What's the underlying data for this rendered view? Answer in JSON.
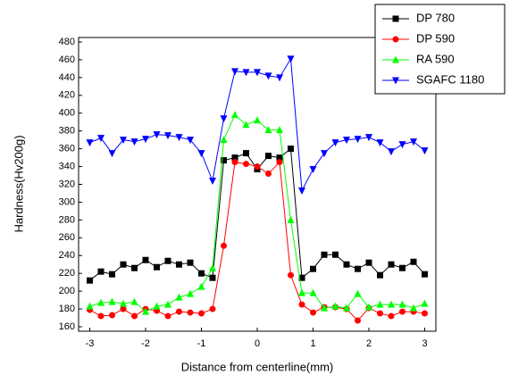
{
  "chart_data": {
    "type": "line",
    "xlabel": "Distance from centerline(mm)",
    "ylabel": "Hardness(Hv200g)",
    "x": [
      -3,
      -2.8,
      -2.6,
      -2.4,
      -2.2,
      -2,
      -1.8,
      -1.6,
      -1.4,
      -1.2,
      -1,
      -0.8,
      -0.6,
      -0.4,
      -0.2,
      0,
      0.2,
      0.4,
      0.6,
      0.8,
      1,
      1.2,
      1.4,
      1.6,
      1.8,
      2,
      2.2,
      2.4,
      2.6,
      2.8,
      3
    ],
    "series": [
      {
        "name": "DP 780",
        "color": "#000000",
        "marker": "square",
        "values": [
          212,
          222,
          219,
          230,
          226,
          235,
          227,
          234,
          230,
          232,
          220,
          215,
          347,
          350,
          355,
          337,
          352,
          350,
          360,
          215,
          225,
          241,
          241,
          230,
          225,
          232,
          218,
          230,
          226,
          233,
          219
        ]
      },
      {
        "name": "DP 590",
        "color": "#ff0000",
        "marker": "circle",
        "values": [
          179,
          172,
          173,
          180,
          172,
          180,
          178,
          172,
          177,
          176,
          175,
          180,
          251,
          345,
          343,
          340,
          332,
          345,
          218,
          185,
          176,
          182,
          182,
          180,
          167,
          181,
          175,
          172,
          177,
          177,
          175
        ]
      },
      {
        "name": "RA 590",
        "color": "#00ff00",
        "marker": "triangle-up",
        "values": [
          183,
          187,
          188,
          186,
          188,
          177,
          183,
          185,
          193,
          197,
          205,
          226,
          370,
          398,
          387,
          392,
          381,
          381,
          280,
          198,
          198,
          181,
          183,
          181,
          197,
          182,
          185,
          185,
          185,
          181,
          186
        ]
      },
      {
        "name": "SGAFC 1180",
        "color": "#0000ff",
        "marker": "triangle-down",
        "values": [
          367,
          372,
          355,
          370,
          368,
          371,
          376,
          375,
          373,
          370,
          355,
          324,
          394,
          447,
          446,
          446,
          442,
          440,
          461,
          313,
          337,
          355,
          367,
          370,
          371,
          373,
          367,
          357,
          365,
          368,
          358
        ]
      }
    ],
    "xlim": [
      -3.2,
      3.2
    ],
    "xticks": [
      -3,
      -2,
      -1,
      0,
      1,
      2,
      3
    ],
    "ylim": [
      155,
      485
    ],
    "yticks": [
      160,
      180,
      200,
      220,
      240,
      260,
      280,
      300,
      320,
      340,
      360,
      380,
      400,
      420,
      440,
      460,
      480
    ],
    "grid": false,
    "legend": "upper right"
  }
}
